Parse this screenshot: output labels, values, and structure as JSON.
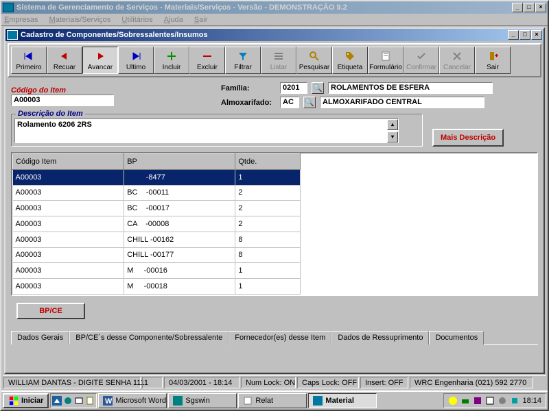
{
  "mainWindow": {
    "title": "Sistema de Gerenciamento de Serviços - Materiais/Serviços - Versão - DEMONSTRAÇÃO 9.2"
  },
  "menu": {
    "items": [
      "Empresas",
      "Materiais/Serviços",
      "Utilitários",
      "Ajuda",
      "Sair"
    ]
  },
  "subWindow": {
    "title": "Cadastro de Componentes/Sobressalentes/Insumos"
  },
  "toolbar": {
    "items": [
      {
        "label": "Primeiro",
        "color": "#0000c0",
        "glyph": "first"
      },
      {
        "label": "Recuar",
        "color": "#c00000",
        "glyph": "back"
      },
      {
        "label": "Avancar",
        "color": "#c00000",
        "glyph": "fwd",
        "pressed": true
      },
      {
        "label": "Ultimo",
        "color": "#0000c0",
        "glyph": "last"
      },
      {
        "label": "Incluir",
        "color": "#009000",
        "glyph": "plus"
      },
      {
        "label": "Excluir",
        "color": "#c00000",
        "glyph": "minus"
      },
      {
        "label": "Filtrar",
        "color": "#0080c0",
        "glyph": "filter"
      },
      {
        "label": "Listar",
        "color": "#808080",
        "glyph": "list",
        "disabled": true
      },
      {
        "label": "Pesquisar",
        "color": "#b08000",
        "glyph": "search"
      },
      {
        "label": "Etiqueta",
        "color": "#b08000",
        "glyph": "tag"
      },
      {
        "label": "Formulário",
        "color": "#808080",
        "glyph": "form"
      },
      {
        "label": "Confirmar",
        "color": "#808080",
        "glyph": "ok",
        "disabled": true
      },
      {
        "label": "Cancelar",
        "color": "#808080",
        "glyph": "cancel",
        "disabled": true
      },
      {
        "label": "Sair",
        "color": "#b08000",
        "glyph": "door"
      }
    ]
  },
  "form": {
    "codigoLabel": "Código do Item",
    "codigoValue": "A00003",
    "familiaLabel": "Família:",
    "familiaCode": "0201",
    "familiaDesc": "ROLAMENTOS DE ESFERA",
    "almoxLabel": "Almoxarifado:",
    "almoxCode": "AC",
    "almoxDesc": "ALMOXARIFADO CENTRAL",
    "descLabel": "Descrição do Item",
    "descValue": "Rolamento 6206 2RS",
    "maisDesc": "Mais Descrição"
  },
  "grid": {
    "columns": [
      "Código Item",
      "BP",
      "Qtde."
    ],
    "rows": [
      {
        "c": "A00003",
        "bp": "         -8477",
        "q": "1",
        "sel": true
      },
      {
        "c": "A00003",
        "bp": "BC    -00011",
        "q": "2"
      },
      {
        "c": "A00003",
        "bp": "BC    -00017",
        "q": "2"
      },
      {
        "c": "A00003",
        "bp": "CA    -00008",
        "q": "2"
      },
      {
        "c": "A00003",
        "bp": "CHILL -00162",
        "q": "8"
      },
      {
        "c": "A00003",
        "bp": "CHILL -00177",
        "q": "8"
      },
      {
        "c": "A00003",
        "bp": "M     -00016",
        "q": "1"
      },
      {
        "c": "A00003",
        "bp": "M     -00018",
        "q": "1"
      }
    ]
  },
  "bpce": "BP/CE",
  "tabs": [
    "Dados Gerais",
    "BP/CE´s desse Componente/Sobressalente",
    "Fornecedor(es) desse Item",
    "Dados de Ressuprimento",
    "Documentos"
  ],
  "status": {
    "cells": [
      "WILLIAM DANTAS - DIGITE SENHA 1111",
      "",
      "04/03/2001 - 18:14",
      "Num Lock: ON",
      "Caps Lock: OFF",
      "Insert: OFF",
      "WRC  Engenharia  (021) 592 2770"
    ]
  },
  "taskbar": {
    "start": "Iniciar",
    "items": [
      {
        "label": "Microsoft Word - ..."
      },
      {
        "label": "Sgswin"
      },
      {
        "label": "Relat"
      },
      {
        "label": "Material",
        "pressed": true
      }
    ],
    "time": "18:14"
  }
}
